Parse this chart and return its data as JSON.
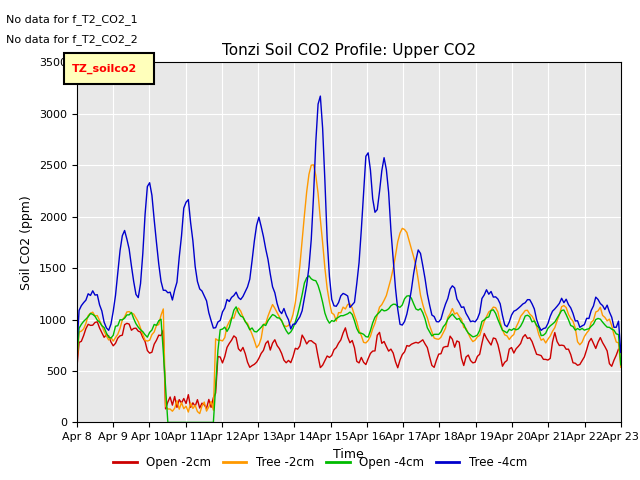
{
  "title": "Tonzi Soil CO2 Profile: Upper CO2",
  "xlabel": "Time",
  "ylabel": "Soil CO2 (ppm)",
  "ylim": [
    0,
    3500
  ],
  "yticks": [
    0,
    500,
    1000,
    1500,
    2000,
    2500,
    3000,
    3500
  ],
  "annotations": [
    "No data for f_T2_CO2_1",
    "No data for f_T2_CO2_2"
  ],
  "legend_label": "TZ_soilco2",
  "plot_bg_color": "#e8e8e8",
  "series_colors": {
    "open_2cm": "#cc0000",
    "tree_2cm": "#ff9900",
    "open_4cm": "#00bb00",
    "tree_4cm": "#0000cc"
  },
  "xtick_labels": [
    "Apr 8",
    "Apr 9",
    "Apr 10",
    "Apr 11",
    "Apr 12",
    "Apr 13",
    "Apr 14",
    "Apr 15",
    "Apr 16",
    "Apr 17",
    "Apr 18",
    "Apr 19",
    "Apr 20",
    "Apr 21",
    "Apr 22",
    "Apr 23"
  ],
  "n_days": 15,
  "legend_entries": [
    "Open -2cm",
    "Tree -2cm",
    "Open -4cm",
    "Tree -4cm"
  ]
}
